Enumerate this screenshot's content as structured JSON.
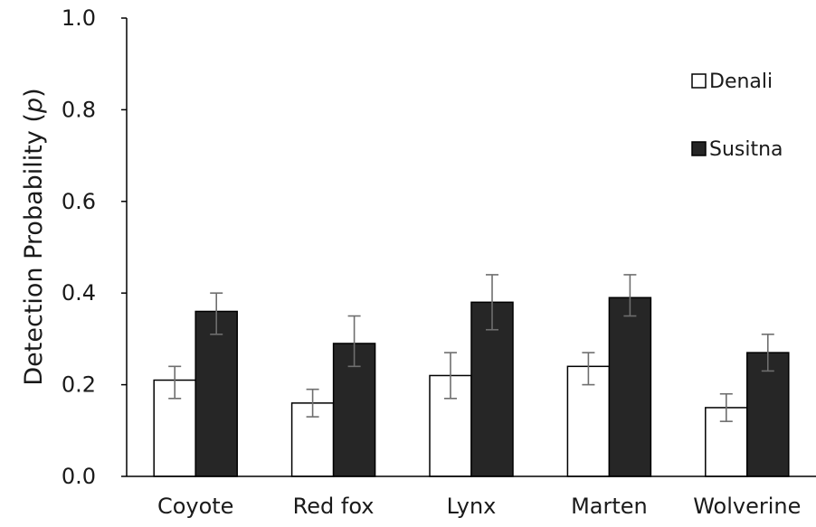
{
  "chart_data": {
    "type": "bar",
    "categories": [
      "Coyote",
      "Red fox",
      "Lynx",
      "Marten",
      "Wolverine"
    ],
    "series": [
      {
        "name": "Denali",
        "values": [
          0.21,
          0.16,
          0.22,
          0.24,
          0.15
        ],
        "err_low": [
          0.17,
          0.13,
          0.17,
          0.2,
          0.12
        ],
        "err_high": [
          0.24,
          0.19,
          0.27,
          0.27,
          0.18
        ],
        "fill": "#ffffff",
        "stroke": "#000000"
      },
      {
        "name": "Susitna",
        "values": [
          0.36,
          0.29,
          0.38,
          0.39,
          0.27
        ],
        "err_low": [
          0.31,
          0.24,
          0.32,
          0.35,
          0.23
        ],
        "err_high": [
          0.4,
          0.35,
          0.44,
          0.44,
          0.31
        ],
        "fill": "#262626",
        "stroke": "#000000"
      }
    ],
    "ylabel_prefix": "Detection Probability (",
    "ylabel_var": "p",
    "ylabel_suffix": ")",
    "xlabel": "",
    "ylim": [
      0,
      1.0
    ],
    "yticks": [
      "0.0",
      "0.2",
      "0.4",
      "0.6",
      "0.8",
      "1.0"
    ],
    "grid": false,
    "legend_position": "top-right",
    "error_bar_color": "#6e6e6e"
  }
}
